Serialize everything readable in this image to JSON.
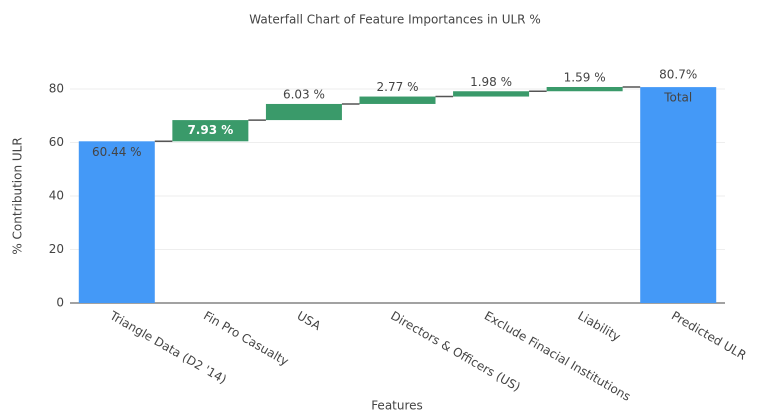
{
  "chart_data": {
    "type": "waterfall",
    "title": "Waterfall Chart of Feature Importances in ULR %",
    "x_label": "Features",
    "y_label": "% Contribution ULR",
    "categories": [
      "Triangle Data (D2 '14)",
      "Fin Pro Casualty",
      "USA",
      "Directors & Officers (US)",
      "Exclude Finacial Institutions",
      "Liability",
      "Predicted ULR"
    ],
    "measure": [
      "absolute",
      "relative",
      "relative",
      "relative",
      "relative",
      "relative",
      "total"
    ],
    "values": [
      60.44,
      7.93,
      6.03,
      2.77,
      1.98,
      1.59,
      80.7
    ],
    "value_labels": [
      "60.44 %",
      "7.93 %",
      "6.03 %",
      "2.77 %",
      "1.98 %",
      "1.59 %",
      "80.7%"
    ],
    "total_label": "Total",
    "colors": {
      "absolute": "#4499f7",
      "relative": "#3a9a6a",
      "total": "#4499f7"
    },
    "connector_color": "#555",
    "ylim": [
      0,
      85
    ],
    "yticks": [
      0,
      20,
      40,
      60,
      80
    ],
    "grid": true
  }
}
